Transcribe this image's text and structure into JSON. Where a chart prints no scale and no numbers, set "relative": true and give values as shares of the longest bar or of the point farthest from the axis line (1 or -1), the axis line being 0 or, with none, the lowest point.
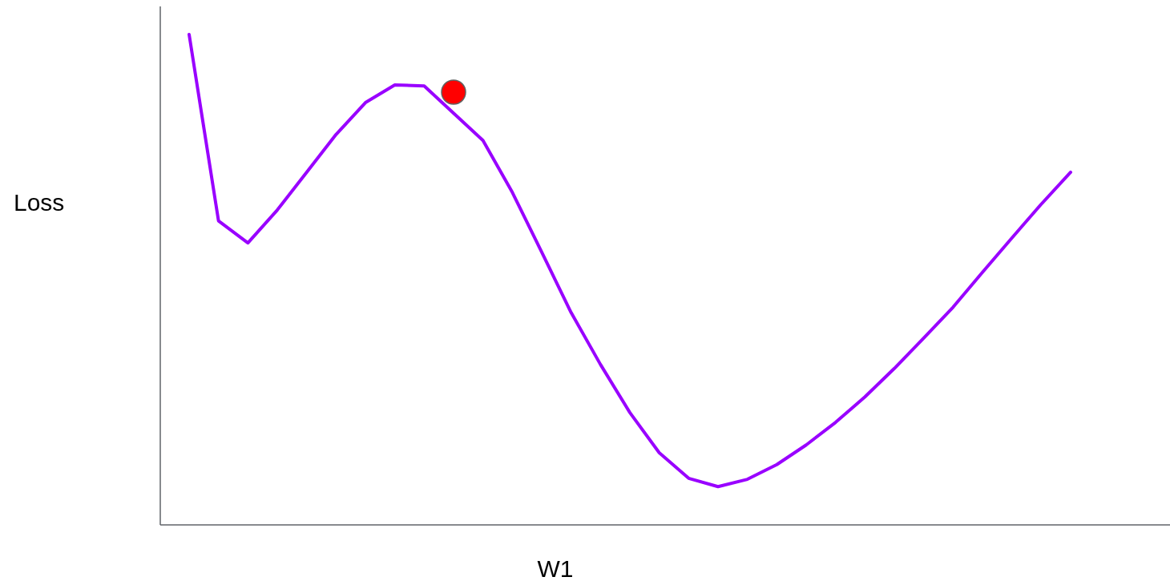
{
  "chart_data": {
    "type": "line",
    "relative": true,
    "xlabel": "W1",
    "ylabel": "Loss",
    "categories": [
      null,
      null,
      null,
      null,
      null,
      null,
      null,
      null,
      null,
      null,
      null,
      null,
      null,
      null,
      null,
      null,
      null,
      null,
      null,
      null,
      null,
      null,
      null,
      null,
      null,
      null,
      null,
      null,
      null,
      null,
      null
    ],
    "series": [
      {
        "color": "#9900ff",
        "values": [
          1.0,
          0.62,
          0.575,
          0.642,
          0.719,
          0.796,
          0.861,
          0.897,
          0.895,
          null,
          0.784,
          0.678,
          0.556,
          0.433,
          0.327,
          0.229,
          0.147,
          0.095,
          0.078,
          0.093,
          0.123,
          0.163,
          0.209,
          0.261,
          0.319,
          0.381,
          0.444,
          0.515,
          0.585,
          0.654,
          0.719
        ]
      }
    ]
  }
}
